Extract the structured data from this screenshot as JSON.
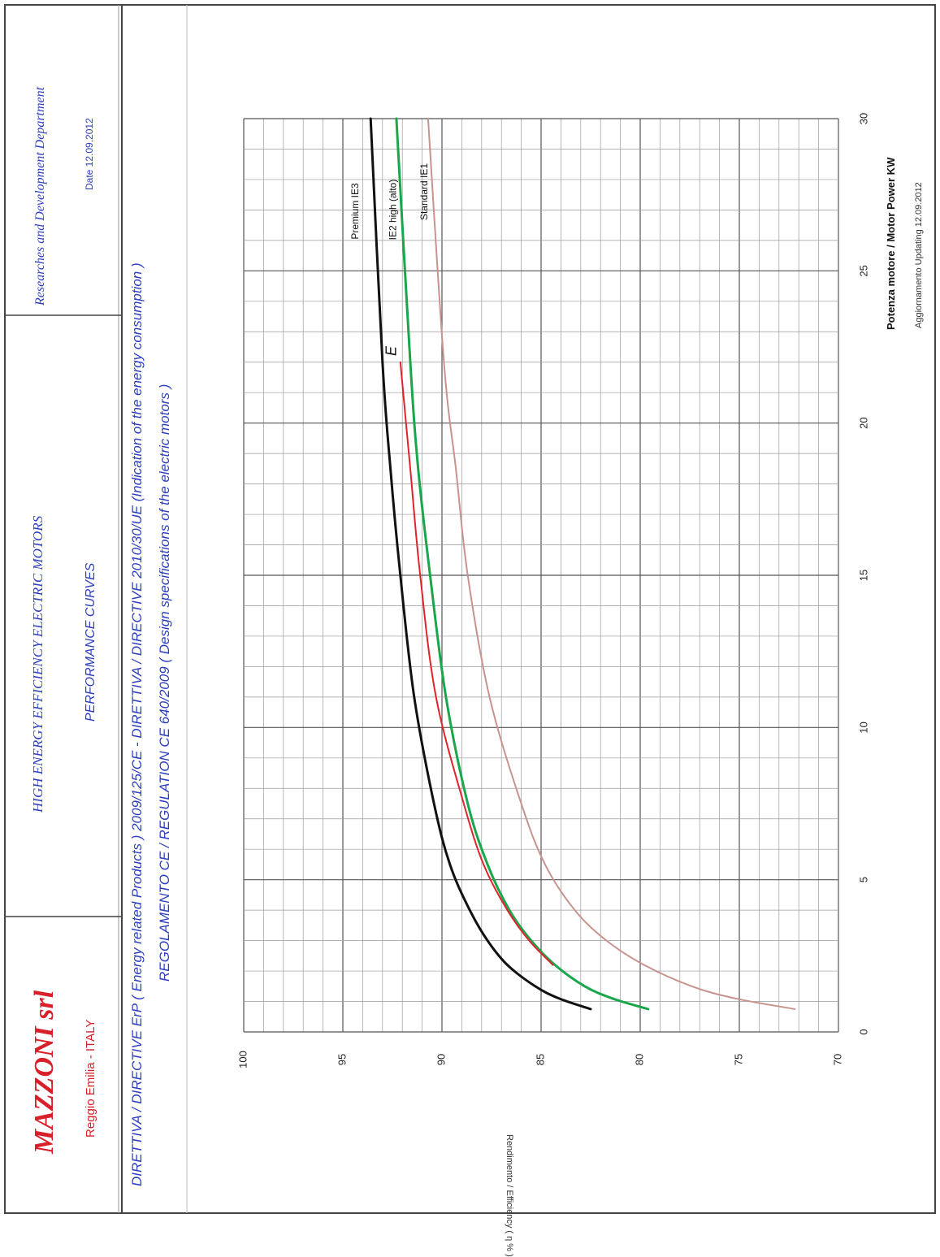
{
  "header": {
    "company": "MAZZONI srl",
    "city": "Reggio Emilia - ITALY",
    "product_line": "HIGH ENERGY EFFICIENCY ELECTRIC MOTORS",
    "doc_title": "PERFORMANCE CURVES",
    "department": "Researches and Development Department",
    "date": "Date  12.09.2012"
  },
  "directives": {
    "line1": "DIRETTIVA / DIRECTIVE ErP ( Energy related Products ) 2009/125/CE  -  DIRETTIVA / DIRECTIVE 2010/30/UE (Indication of the energy consumption )",
    "line2": "REGOLAMENTO CE / REGULATION CE  640/2009  ( Design specifications of the electric motors )"
  },
  "footer": {
    "updating": "Aggiornamento Updating  12.09.2012"
  },
  "colors": {
    "blue_text": "#2d3fbf",
    "red_text": "#d8202a",
    "ie3": "#111111",
    "ie2": "#1aa64a",
    "e_curve": "#e0242c",
    "ie1": "#c8938e"
  },
  "chart_data": {
    "type": "line",
    "xlabel": "Potenza motore  / Motor Power   KW",
    "ylabel": "Rendimento / Efficiency ( η % )",
    "xlim": [
      0,
      30
    ],
    "ylim": [
      70,
      100
    ],
    "x_ticks": [
      "0",
      "5",
      "10",
      "15",
      "20",
      "25",
      "30"
    ],
    "y_ticks": [
      "70",
      "75",
      "80",
      "85",
      "90",
      "95",
      "100"
    ],
    "grid": true,
    "series": [
      {
        "name": "Premium  IE3",
        "color": "#111111",
        "x": [
          0.75,
          1.1,
          1.5,
          2.2,
          3,
          4,
          5.5,
          7.5,
          11,
          15,
          18.5,
          22,
          30
        ],
        "y": [
          82.5,
          84.1,
          85.3,
          86.7,
          87.7,
          88.6,
          89.6,
          90.4,
          91.4,
          92.1,
          92.6,
          93.0,
          93.6
        ]
      },
      {
        "name": "IE2 high (alto)",
        "color": "#1aa64a",
        "x": [
          0.75,
          1.1,
          1.5,
          2.2,
          3,
          4,
          5.5,
          7.5,
          11,
          15,
          18.5,
          22,
          30
        ],
        "y": [
          79.6,
          81.4,
          82.8,
          84.3,
          85.5,
          86.6,
          87.7,
          88.7,
          89.8,
          90.6,
          91.2,
          91.6,
          92.3
        ]
      },
      {
        "name": "E",
        "color": "#e0242c",
        "x": [
          2.2,
          3,
          4,
          5.5,
          7.5,
          11,
          15,
          18.5,
          22
        ],
        "y": [
          84.4,
          85.6,
          86.7,
          87.9,
          88.9,
          90.3,
          91.1,
          91.6,
          92.1
        ]
      },
      {
        "name": "Standard  IE1",
        "color": "#c8938e",
        "x": [
          0.75,
          1.1,
          1.5,
          2.2,
          3,
          4,
          5.5,
          7.5,
          11,
          15,
          18.5,
          22,
          30
        ],
        "y": [
          72.2,
          75.2,
          77.4,
          79.8,
          81.7,
          83.3,
          84.8,
          86.0,
          87.6,
          88.7,
          89.3,
          89.9,
          90.7
        ]
      }
    ]
  }
}
